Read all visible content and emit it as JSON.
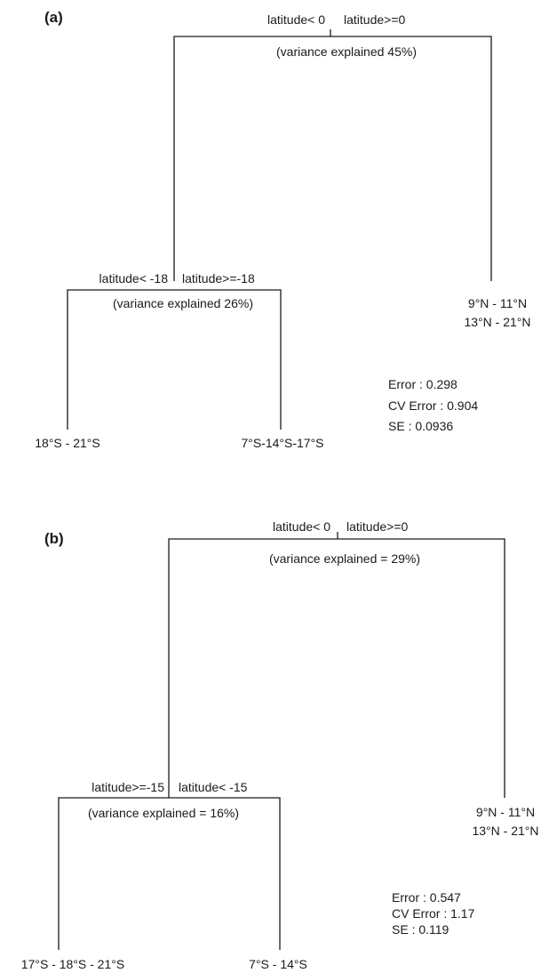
{
  "panels": [
    {
      "label": "(a)",
      "root": {
        "left_split": "latitude< 0",
        "right_split": "latitude>=0",
        "variance": "(variance explained 45%)"
      },
      "sub": {
        "left_split": "latitude< -18",
        "right_split": "latitude>=-18",
        "variance": "(variance explained 26%)"
      },
      "leaves": {
        "left": "18°S - 21°S",
        "middle": "7°S-14°S-17°S",
        "right_line1": "9°N - 11°N",
        "right_line2": "13°N - 21°N"
      },
      "stats": {
        "error": "Error :  0.298",
        "cv_error": "CV Error :  0.904",
        "se": "SE :  0.0936"
      }
    },
    {
      "label": "(b)",
      "root": {
        "left_split": "latitude< 0",
        "right_split": "latitude>=0",
        "variance": "(variance explained = 29%)"
      },
      "sub": {
        "left_split": "latitude>=-15",
        "right_split": "latitude< -15",
        "variance": "(variance explained = 16%)"
      },
      "leaves": {
        "left": "17°S - 18°S - 21°S",
        "middle": "7°S - 14°S",
        "right_line1": "9°N - 11°N",
        "right_line2": "13°N - 21°N"
      },
      "stats": {
        "error": "Error :  0.547",
        "cv_error": "CV Error :  1.17",
        "se": "SE :  0.119"
      }
    }
  ]
}
